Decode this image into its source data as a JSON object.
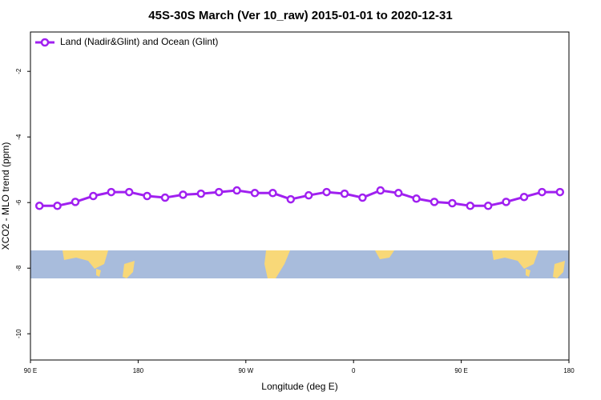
{
  "chart_data": {
    "type": "line",
    "title": "45S-30S March (Ver 10_raw)   2015-01-01 to 2020-12-31",
    "x_label": "Longitude (deg E)",
    "y_label": "XCO2 - MLO trend (ppm)",
    "x": [
      97.5,
      112.5,
      127.5,
      142.5,
      157.5,
      172.5,
      187.5,
      202.5,
      217.5,
      232.5,
      247.5,
      262.5,
      277.5,
      292.5,
      307.5,
      322.5,
      337.5,
      352.5,
      367.5,
      382.5,
      397.5,
      412.5,
      427.5,
      442.5,
      457.5,
      472.5,
      487.5,
      502.5,
      517.5,
      532.5
    ],
    "series": [
      {
        "name": "Land (Nadir&Glint) and Ocean (Glint)",
        "color": "#a020f0",
        "values": [
          -6.1,
          -6.1,
          -5.98,
          -5.8,
          -5.68,
          -5.68,
          -5.8,
          -5.85,
          -5.76,
          -5.73,
          -5.68,
          -5.63,
          -5.71,
          -5.71,
          -5.9,
          -5.78,
          -5.68,
          -5.73,
          -5.85,
          -5.63,
          -5.71,
          -5.88,
          -5.98,
          -6.02,
          -6.1,
          -6.1,
          -5.98,
          -5.83,
          -5.68,
          -5.68
        ]
      }
    ],
    "xlim": [
      90,
      540
    ],
    "xticks": [
      {
        "value": 90,
        "label": "90 E"
      },
      180,
      {
        "value": 270,
        "label": "90 W"
      },
      {
        "value": 360,
        "label": "0"
      },
      {
        "value": 450,
        "label": "90 E"
      },
      {
        "value": 540,
        "label": "180"
      }
    ],
    "ylim": [
      -10.8,
      -0.8
    ],
    "yticks": [
      -2,
      -4,
      -6,
      -8,
      -10
    ],
    "legend": "top-left"
  }
}
